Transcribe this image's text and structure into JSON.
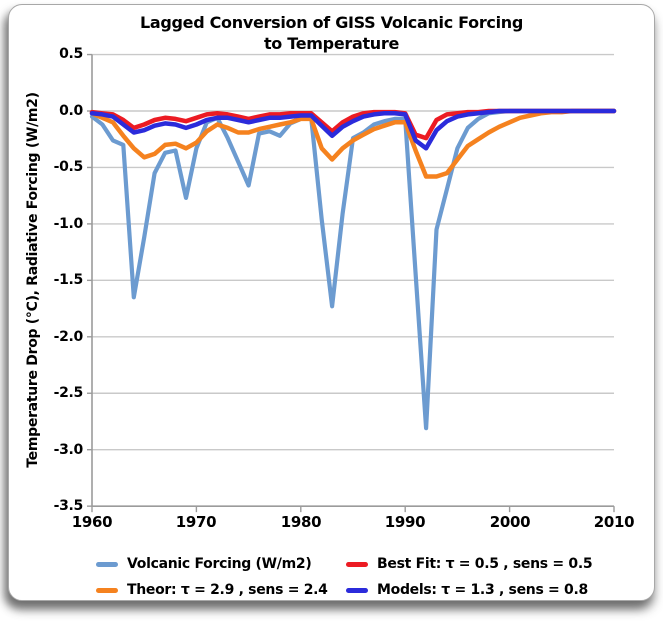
{
  "title": {
    "line1": "Lagged Conversion of GISS Volcanic Forcing",
    "line2": "to Temperature"
  },
  "y_axis": {
    "title": "Temperature Drop (°C), Radiative Forcing (W/m2)",
    "ticks": [
      "0.5",
      "0.0",
      "-0.5",
      "-1.0",
      "-1.5",
      "-2.0",
      "-2.5",
      "-3.0",
      "-3.5"
    ]
  },
  "x_axis": {
    "ticks": [
      "1960",
      "1970",
      "1980",
      "1990",
      "2000",
      "2010"
    ]
  },
  "legend": [
    {
      "label": "Volcanic Forcing (W/m2)",
      "color": "#6C9BD0"
    },
    {
      "label": "Best Fit: τ = 0.5 , sens = 0.5",
      "color": "#EC1B23"
    },
    {
      "label": "Theor: τ = 2.9 , sens = 2.4",
      "color": "#F5821F"
    },
    {
      "label": "Models: τ = 1.3 , sens = 0.8",
      "color": "#2B2BDB"
    }
  ],
  "colors": {
    "gridline": "#C9C9C9",
    "axis": "#9B9B9B",
    "text": "#000000",
    "background": "#FFFFFF"
  },
  "chart_data": {
    "type": "line",
    "title": "Lagged Conversion of GISS Volcanic Forcing to Temperature",
    "xlabel": "",
    "ylabel": "Temperature Drop (°C), Radiative Forcing (W/m2)",
    "xlim": [
      1960,
      2010
    ],
    "ylim": [
      -3.5,
      0.5
    ],
    "grid": true,
    "legend_position": "bottom",
    "x": [
      1960,
      1961,
      1962,
      1963,
      1964,
      1965,
      1966,
      1967,
      1968,
      1969,
      1970,
      1971,
      1972,
      1973,
      1974,
      1975,
      1976,
      1977,
      1978,
      1979,
      1980,
      1981,
      1982,
      1983,
      1984,
      1985,
      1986,
      1987,
      1988,
      1989,
      1990,
      1991,
      1992,
      1993,
      1994,
      1995,
      1996,
      1997,
      1998,
      1999,
      2000,
      2001,
      2002,
      2003,
      2004,
      2005,
      2006,
      2007,
      2008,
      2009,
      2010
    ],
    "series": [
      {
        "id": "volcanic-forcing",
        "name": "Volcanic Forcing (W/m2)",
        "color": "#6C9BD0",
        "values": [
          -0.05,
          -0.12,
          -0.26,
          -0.3,
          -1.65,
          -1.12,
          -0.55,
          -0.37,
          -0.35,
          -0.77,
          -0.33,
          -0.1,
          -0.06,
          -0.24,
          -0.45,
          -0.66,
          -0.2,
          -0.18,
          -0.22,
          -0.11,
          -0.07,
          -0.06,
          -0.96,
          -1.73,
          -0.91,
          -0.24,
          -0.19,
          -0.12,
          -0.09,
          -0.07,
          -0.07,
          -1.44,
          -2.81,
          -1.05,
          -0.69,
          -0.33,
          -0.15,
          -0.07,
          -0.02,
          -0.01,
          0,
          0,
          0,
          0,
          0,
          0,
          0,
          0,
          0,
          0,
          0
        ]
      },
      {
        "id": "theor",
        "name": "Theor: τ = 2.9 , sens = 2.4",
        "color": "#F5821F",
        "values": [
          -0.02,
          -0.06,
          -0.1,
          -0.22,
          -0.33,
          -0.41,
          -0.38,
          -0.3,
          -0.29,
          -0.33,
          -0.28,
          -0.18,
          -0.12,
          -0.15,
          -0.19,
          -0.19,
          -0.16,
          -0.14,
          -0.12,
          -0.1,
          -0.07,
          -0.07,
          -0.33,
          -0.43,
          -0.33,
          -0.26,
          -0.21,
          -0.16,
          -0.13,
          -0.1,
          -0.1,
          -0.35,
          -0.58,
          -0.58,
          -0.55,
          -0.43,
          -0.31,
          -0.25,
          -0.19,
          -0.14,
          -0.1,
          -0.06,
          -0.04,
          -0.02,
          -0.01,
          -0.01,
          0,
          0,
          0,
          0,
          0
        ]
      },
      {
        "id": "best-fit",
        "name": "Best Fit: τ = 0.5 , sens = 0.5",
        "color": "#EC1B23",
        "values": [
          -0.01,
          -0.02,
          -0.03,
          -0.08,
          -0.15,
          -0.12,
          -0.08,
          -0.06,
          -0.07,
          -0.09,
          -0.06,
          -0.03,
          -0.02,
          -0.03,
          -0.05,
          -0.07,
          -0.05,
          -0.03,
          -0.03,
          -0.02,
          -0.02,
          -0.02,
          -0.1,
          -0.18,
          -0.1,
          -0.05,
          -0.02,
          -0.01,
          -0.01,
          -0.01,
          -0.02,
          -0.21,
          -0.24,
          -0.08,
          -0.03,
          -0.02,
          -0.01,
          -0.01,
          0,
          0,
          0,
          0,
          0,
          0,
          0,
          0,
          0,
          0,
          0,
          0,
          0
        ]
      },
      {
        "id": "models",
        "name": "Models: τ = 1.3 , sens = 0.8",
        "color": "#2B2BDB",
        "values": [
          -0.02,
          -0.03,
          -0.05,
          -0.12,
          -0.19,
          -0.17,
          -0.13,
          -0.11,
          -0.12,
          -0.15,
          -0.12,
          -0.08,
          -0.06,
          -0.06,
          -0.08,
          -0.1,
          -0.08,
          -0.06,
          -0.06,
          -0.05,
          -0.04,
          -0.04,
          -0.13,
          -0.22,
          -0.14,
          -0.09,
          -0.05,
          -0.03,
          -0.02,
          -0.02,
          -0.03,
          -0.26,
          -0.33,
          -0.17,
          -0.09,
          -0.05,
          -0.03,
          -0.02,
          -0.01,
          0,
          0,
          0,
          0,
          0,
          0,
          0,
          0,
          0,
          0,
          0,
          0
        ]
      }
    ]
  }
}
